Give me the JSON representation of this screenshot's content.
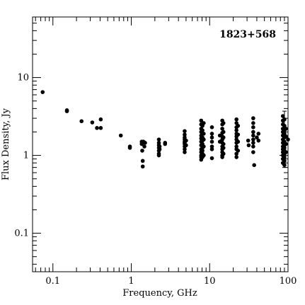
{
  "chart_data": {
    "type": "scatter",
    "title": "1823+568",
    "xlabel": "Frequency, GHz",
    "ylabel": "Flux Density, Jy",
    "x_scale": "log",
    "y_scale": "log",
    "xlim": [
      0.055,
      100
    ],
    "ylim": [
      0.032,
      60
    ],
    "x_tick_labels": [
      "0.1",
      "1",
      "10",
      "100"
    ],
    "y_tick_labels": [
      "0.1",
      "1",
      "10"
    ],
    "grid": false,
    "point_color": "#000000",
    "error_bars": [
      {
        "x": 90,
        "y_low": 0.7,
        "y_high": 3.7
      }
    ],
    "points": [
      {
        "x": 0.074,
        "y": 6.5
      },
      {
        "x": 0.151,
        "y": 3.8
      },
      {
        "x": 0.151,
        "y": 3.7
      },
      {
        "x": 0.232,
        "y": 2.75
      },
      {
        "x": 0.318,
        "y": 2.65
      },
      {
        "x": 0.365,
        "y": 2.25
      },
      {
        "x": 0.408,
        "y": 2.9
      },
      {
        "x": 0.408,
        "y": 2.25
      },
      {
        "x": 0.735,
        "y": 1.8
      },
      {
        "x": 0.96,
        "y": 1.3
      },
      {
        "x": 0.96,
        "y": 1.25
      },
      {
        "x": 1.36,
        "y": 1.5
      },
      {
        "x": 1.36,
        "y": 1.4
      },
      {
        "x": 1.38,
        "y": 1.15
      },
      {
        "x": 1.4,
        "y": 0.85
      },
      {
        "x": 1.4,
        "y": 0.72
      },
      {
        "x": 1.43,
        "y": 1.5
      },
      {
        "x": 1.47,
        "y": 1.3
      },
      {
        "x": 1.5,
        "y": 1.45
      },
      {
        "x": 2.25,
        "y": 1.6
      },
      {
        "x": 2.25,
        "y": 1.45
      },
      {
        "x": 2.25,
        "y": 1.35
      },
      {
        "x": 2.25,
        "y": 1.25
      },
      {
        "x": 2.25,
        "y": 1.15
      },
      {
        "x": 2.25,
        "y": 1.05
      },
      {
        "x": 2.25,
        "y": 1.0
      },
      {
        "x": 2.3,
        "y": 1.3
      },
      {
        "x": 2.3,
        "y": 1.2
      },
      {
        "x": 2.7,
        "y": 1.45
      },
      {
        "x": 2.7,
        "y": 1.4
      },
      {
        "x": 4.8,
        "y": 2.05
      },
      {
        "x": 4.8,
        "y": 1.85
      },
      {
        "x": 4.8,
        "y": 1.7
      },
      {
        "x": 4.8,
        "y": 1.6
      },
      {
        "x": 4.8,
        "y": 1.5
      },
      {
        "x": 4.8,
        "y": 1.45
      },
      {
        "x": 4.8,
        "y": 1.4
      },
      {
        "x": 4.8,
        "y": 1.3
      },
      {
        "x": 4.8,
        "y": 1.2
      },
      {
        "x": 4.8,
        "y": 1.1
      },
      {
        "x": 5.0,
        "y": 1.55
      },
      {
        "x": 5.0,
        "y": 1.35
      },
      {
        "x": 7.8,
        "y": 2.8
      },
      {
        "x": 7.8,
        "y": 2.5
      },
      {
        "x": 7.8,
        "y": 2.2
      },
      {
        "x": 7.8,
        "y": 2.0
      },
      {
        "x": 7.8,
        "y": 1.8
      },
      {
        "x": 7.8,
        "y": 1.65
      },
      {
        "x": 7.8,
        "y": 1.5
      },
      {
        "x": 7.8,
        "y": 1.35
      },
      {
        "x": 7.8,
        "y": 1.2
      },
      {
        "x": 7.8,
        "y": 1.1
      },
      {
        "x": 7.8,
        "y": 1.0
      },
      {
        "x": 7.8,
        "y": 0.95
      },
      {
        "x": 7.8,
        "y": 0.88
      },
      {
        "x": 8.1,
        "y": 2.4
      },
      {
        "x": 8.1,
        "y": 2.1
      },
      {
        "x": 8.1,
        "y": 1.9
      },
      {
        "x": 8.1,
        "y": 1.7
      },
      {
        "x": 8.1,
        "y": 1.55
      },
      {
        "x": 8.1,
        "y": 1.4
      },
      {
        "x": 8.1,
        "y": 1.25
      },
      {
        "x": 8.1,
        "y": 1.15
      },
      {
        "x": 8.1,
        "y": 1.05
      },
      {
        "x": 8.1,
        "y": 0.95
      },
      {
        "x": 8.4,
        "y": 2.6
      },
      {
        "x": 8.4,
        "y": 1.9
      },
      {
        "x": 8.4,
        "y": 1.6
      },
      {
        "x": 8.4,
        "y": 1.3
      },
      {
        "x": 8.4,
        "y": 1.0
      },
      {
        "x": 10.7,
        "y": 2.3
      },
      {
        "x": 10.7,
        "y": 1.9
      },
      {
        "x": 10.7,
        "y": 1.7
      },
      {
        "x": 10.7,
        "y": 1.5
      },
      {
        "x": 10.7,
        "y": 1.3
      },
      {
        "x": 10.7,
        "y": 1.2
      },
      {
        "x": 10.7,
        "y": 0.92
      },
      {
        "x": 14.5,
        "y": 2.8
      },
      {
        "x": 14.5,
        "y": 2.5
      },
      {
        "x": 14.5,
        "y": 2.2
      },
      {
        "x": 14.5,
        "y": 1.95
      },
      {
        "x": 14.5,
        "y": 1.75
      },
      {
        "x": 14.5,
        "y": 1.6
      },
      {
        "x": 14.5,
        "y": 1.45
      },
      {
        "x": 14.5,
        "y": 1.3
      },
      {
        "x": 14.5,
        "y": 1.2
      },
      {
        "x": 14.5,
        "y": 1.1
      },
      {
        "x": 14.5,
        "y": 1.0
      },
      {
        "x": 14.5,
        "y": 0.95
      },
      {
        "x": 15.0,
        "y": 2.6
      },
      {
        "x": 15.0,
        "y": 2.0
      },
      {
        "x": 15.0,
        "y": 1.7
      },
      {
        "x": 15.0,
        "y": 1.4
      },
      {
        "x": 15.0,
        "y": 1.25
      },
      {
        "x": 15.0,
        "y": 1.05
      },
      {
        "x": 13.5,
        "y": 1.8
      },
      {
        "x": 13.5,
        "y": 1.5
      },
      {
        "x": 22.0,
        "y": 2.9
      },
      {
        "x": 22.0,
        "y": 2.6
      },
      {
        "x": 22.0,
        "y": 2.3
      },
      {
        "x": 22.0,
        "y": 2.1
      },
      {
        "x": 22.0,
        "y": 1.9
      },
      {
        "x": 22.0,
        "y": 1.75
      },
      {
        "x": 22.0,
        "y": 1.6
      },
      {
        "x": 22.0,
        "y": 1.45
      },
      {
        "x": 22.0,
        "y": 1.3
      },
      {
        "x": 22.0,
        "y": 1.2
      },
      {
        "x": 22.0,
        "y": 1.05
      },
      {
        "x": 22.0,
        "y": 0.95
      },
      {
        "x": 23.0,
        "y": 2.4
      },
      {
        "x": 23.0,
        "y": 1.85
      },
      {
        "x": 23.0,
        "y": 1.5
      },
      {
        "x": 23.0,
        "y": 1.15
      },
      {
        "x": 31.0,
        "y": 1.55
      },
      {
        "x": 31.5,
        "y": 1.35
      },
      {
        "x": 36.0,
        "y": 3.0
      },
      {
        "x": 36.0,
        "y": 2.6
      },
      {
        "x": 36.0,
        "y": 2.3
      },
      {
        "x": 36.0,
        "y": 2.0
      },
      {
        "x": 36.0,
        "y": 1.8
      },
      {
        "x": 36.0,
        "y": 1.6
      },
      {
        "x": 36.0,
        "y": 1.45
      },
      {
        "x": 36.0,
        "y": 1.3
      },
      {
        "x": 36.0,
        "y": 1.1
      },
      {
        "x": 37.0,
        "y": 0.75
      },
      {
        "x": 40.0,
        "y": 1.7
      },
      {
        "x": 42.0,
        "y": 1.9
      },
      {
        "x": 42.0,
        "y": 1.55
      },
      {
        "x": 86.0,
        "y": 3.2
      },
      {
        "x": 86.0,
        "y": 2.8
      },
      {
        "x": 86.0,
        "y": 2.5
      },
      {
        "x": 86.0,
        "y": 2.2
      },
      {
        "x": 86.0,
        "y": 2.0
      },
      {
        "x": 86.0,
        "y": 1.8
      },
      {
        "x": 86.0,
        "y": 1.6
      },
      {
        "x": 86.0,
        "y": 1.45
      },
      {
        "x": 86.0,
        "y": 1.3
      },
      {
        "x": 86.0,
        "y": 1.2
      },
      {
        "x": 86.0,
        "y": 1.1
      },
      {
        "x": 86.0,
        "y": 1.0
      },
      {
        "x": 86.0,
        "y": 0.9
      },
      {
        "x": 86.0,
        "y": 0.8
      },
      {
        "x": 90.0,
        "y": 2.9
      },
      {
        "x": 90.0,
        "y": 2.4
      },
      {
        "x": 90.0,
        "y": 2.1
      },
      {
        "x": 90.0,
        "y": 1.9
      },
      {
        "x": 90.0,
        "y": 1.7
      },
      {
        "x": 90.0,
        "y": 1.5
      },
      {
        "x": 90.0,
        "y": 1.35
      },
      {
        "x": 90.0,
        "y": 1.25
      },
      {
        "x": 90.0,
        "y": 1.15
      },
      {
        "x": 90.0,
        "y": 1.05
      },
      {
        "x": 90.0,
        "y": 0.95
      },
      {
        "x": 90.0,
        "y": 0.85
      },
      {
        "x": 90.0,
        "y": 0.75
      },
      {
        "x": 94.0,
        "y": 2.2
      },
      {
        "x": 94.0,
        "y": 1.75
      },
      {
        "x": 94.0,
        "y": 1.4
      },
      {
        "x": 94.0,
        "y": 1.1
      },
      {
        "x": 100.0,
        "y": 1.6
      }
    ]
  }
}
